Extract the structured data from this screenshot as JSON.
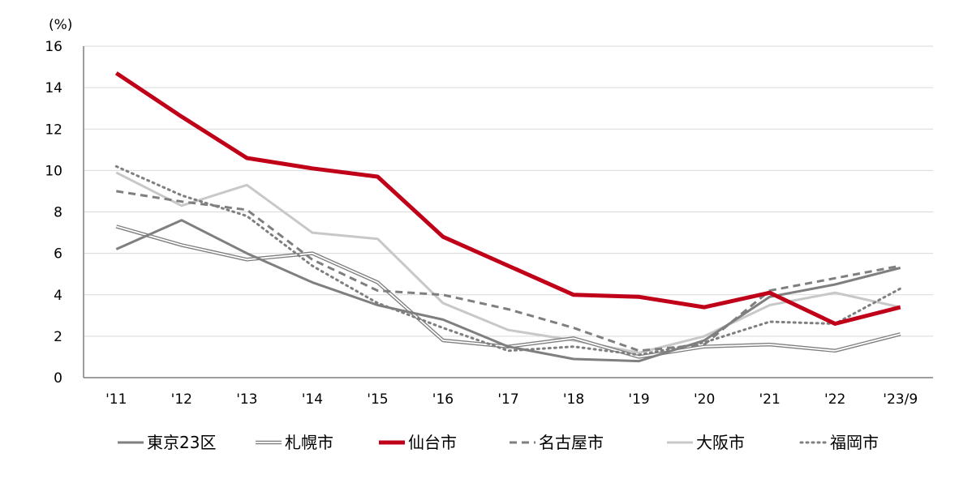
{
  "chart_data": {
    "type": "line",
    "y_unit_label": "(%)",
    "categories": [
      "'11",
      "'12",
      "'13",
      "'14",
      "'15",
      "'16",
      "'17",
      "'18",
      "'19",
      "'20",
      "'21",
      "'22",
      "'23/9"
    ],
    "ylim": [
      0,
      16
    ],
    "yticks": [
      0,
      2,
      4,
      6,
      8,
      10,
      12,
      14,
      16
    ],
    "grid": true,
    "legend_position": "bottom",
    "series": [
      {
        "name": "東京23区",
        "style": "solid",
        "color": "#7f7f7f",
        "values": [
          6.2,
          7.6,
          6.0,
          4.6,
          3.5,
          2.8,
          1.5,
          0.9,
          0.8,
          1.8,
          3.9,
          4.5,
          5.3
        ]
      },
      {
        "name": "札幌市",
        "style": "double",
        "color": "#7f7f7f",
        "values": [
          7.3,
          6.4,
          5.7,
          6.0,
          4.6,
          1.8,
          1.5,
          1.9,
          1.0,
          1.5,
          1.6,
          1.3,
          2.1
        ]
      },
      {
        "name": "仙台市",
        "style": "thick",
        "color": "#c00018",
        "values": [
          14.7,
          12.6,
          10.6,
          10.1,
          9.7,
          6.8,
          5.4,
          4.0,
          3.9,
          3.4,
          4.1,
          2.6,
          3.4
        ]
      },
      {
        "name": "名古屋市",
        "style": "dashed",
        "color": "#7f7f7f",
        "values": [
          9.0,
          8.5,
          8.1,
          5.7,
          4.2,
          4.0,
          3.3,
          2.4,
          1.3,
          1.6,
          4.2,
          4.8,
          5.4
        ]
      },
      {
        "name": "大阪市",
        "style": "solid-light",
        "color": "#c8c8c8",
        "values": [
          9.9,
          8.3,
          9.3,
          7.0,
          6.7,
          3.6,
          2.3,
          1.8,
          1.2,
          2.0,
          3.5,
          4.1,
          3.4
        ]
      },
      {
        "name": "福岡市",
        "style": "dotted",
        "color": "#7f7f7f",
        "values": [
          10.2,
          8.8,
          7.8,
          5.4,
          3.6,
          2.4,
          1.3,
          1.5,
          1.1,
          1.7,
          2.7,
          2.6,
          4.3
        ]
      }
    ]
  }
}
